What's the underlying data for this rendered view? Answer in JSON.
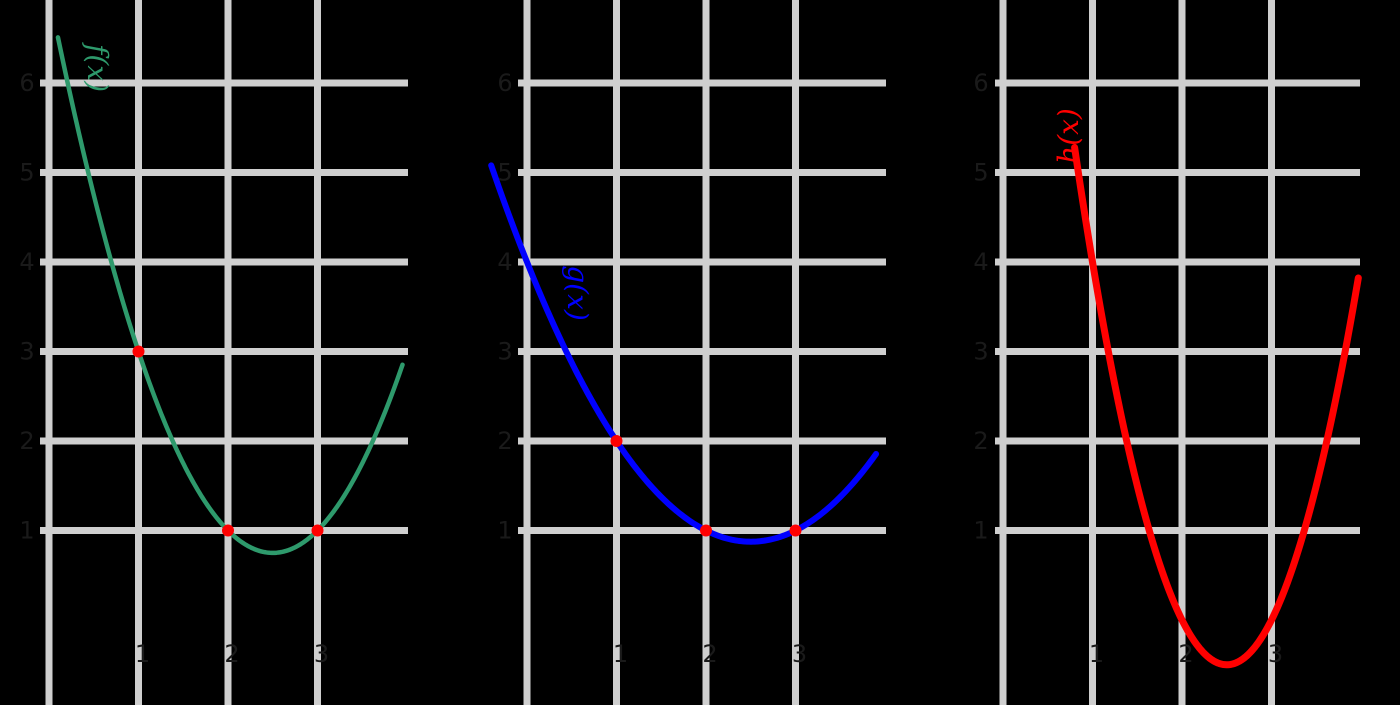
{
  "chart_data": [
    {
      "type": "line",
      "title": "",
      "xlabel": "",
      "ylabel": "",
      "grid": true,
      "xlim": [
        0,
        3.9
      ],
      "ylim": [
        -1.3,
        6.9
      ],
      "x_ticks": [
        1,
        2,
        3
      ],
      "x_tick_labels": [
        "1",
        "2",
        "3"
      ],
      "y_ticks": [
        1,
        2,
        3,
        4,
        5,
        6
      ],
      "y_tick_labels": [
        "1",
        "2",
        "3",
        "4",
        "5",
        "6"
      ],
      "series": [
        {
          "name": "f(x)",
          "color": "#2e9a6c",
          "formula": "x^2 - 5x + 7",
          "x_range": [
            0.1,
            3.95
          ],
          "points": [
            {
              "x": 1,
              "y": 3
            },
            {
              "x": 2,
              "y": 1
            },
            {
              "x": 3,
              "y": 1
            }
          ]
        }
      ],
      "point_color": "#ff0000"
    },
    {
      "type": "line",
      "title": "",
      "xlabel": "",
      "ylabel": "",
      "grid": true,
      "xlim": [
        0,
        3.9
      ],
      "ylim": [
        -1.3,
        6.9
      ],
      "x_ticks": [
        1,
        2,
        3
      ],
      "x_tick_labels": [
        "1",
        "2",
        "3"
      ],
      "y_ticks": [
        1,
        2,
        3,
        4,
        5,
        6
      ],
      "y_tick_labels": [
        "1",
        "2",
        "3",
        "4",
        "5",
        "6"
      ],
      "series": [
        {
          "name": "g(x)",
          "color": "#0000ff",
          "formula": "0.5x^2 - 2.5x + 4",
          "x_range": [
            -0.4,
            3.9
          ],
          "points": [
            {
              "x": 1,
              "y": 2
            },
            {
              "x": 2,
              "y": 1
            },
            {
              "x": 3,
              "y": 1
            }
          ]
        }
      ],
      "point_color": "#ff0000"
    },
    {
      "type": "line",
      "title": "",
      "xlabel": "",
      "ylabel": "",
      "grid": true,
      "xlim": [
        0,
        3.9
      ],
      "ylim": [
        -1.3,
        6.9
      ],
      "x_ticks": [
        1,
        2,
        3
      ],
      "x_tick_labels": [
        "1",
        "2",
        "3"
      ],
      "y_ticks": [
        1,
        2,
        3,
        4,
        5,
        6
      ],
      "y_tick_labels": [
        "1",
        "2",
        "3",
        "4",
        "5",
        "6"
      ],
      "series": [
        {
          "name": "h(x)",
          "color": "#ff0000",
          "formula": "2x^2 - 10x + 12",
          "x_range": [
            0.8,
            3.97
          ],
          "points": []
        }
      ],
      "point_color": "#ff0000"
    }
  ]
}
